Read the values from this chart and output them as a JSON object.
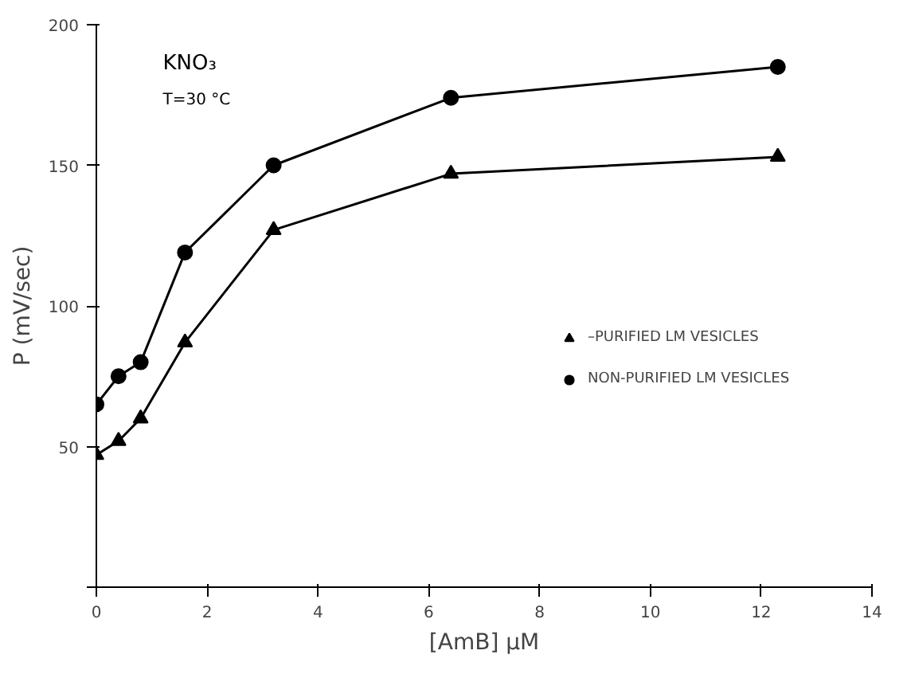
{
  "chart_data": {
    "type": "line",
    "xlabel": "[AmB] µM",
    "ylabel": "P (mV/sec)",
    "xlim": [
      0,
      14
    ],
    "ylim": [
      0,
      200
    ],
    "xticks": [
      0,
      2,
      4,
      6,
      8,
      10,
      12,
      14
    ],
    "yticks": [
      {
        "value": 0,
        "label": null
      },
      50,
      100,
      150,
      200
    ],
    "grid": false,
    "legend": "right",
    "annotations": [
      "KNO₃",
      "T=30 °C"
    ],
    "series": [
      {
        "name": "–PURIFIED LM VESICLES",
        "color": "#000000",
        "marker": "triangle",
        "x": [
          0,
          0.4,
          0.8,
          1.6,
          3.2,
          6.4,
          12.3
        ],
        "values": [
          47,
          52,
          60,
          87,
          127,
          147,
          153
        ]
      },
      {
        "name": "NON-PURIFIED LM VESICLES",
        "color": "#000000",
        "marker": "circle",
        "x": [
          0,
          0.4,
          0.8,
          1.6,
          3.2,
          6.4,
          12.3
        ],
        "values": [
          65,
          75,
          80,
          119,
          150,
          174,
          185
        ]
      }
    ]
  }
}
